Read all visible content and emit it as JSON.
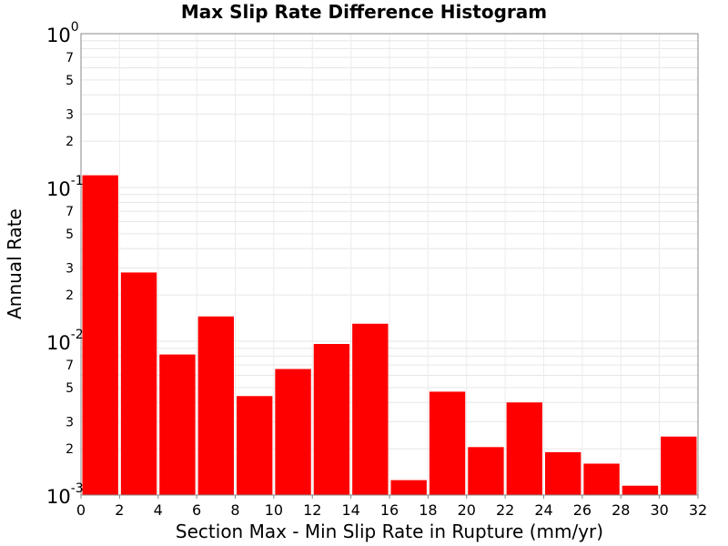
{
  "chart_data": {
    "type": "bar",
    "title": "Max Slip Rate Difference Histogram",
    "xlabel": "Section Max - Min Slip Rate in Rupture (mm/yr)",
    "ylabel": "Annual Rate",
    "xlim": [
      0,
      32
    ],
    "ylim": [
      0.001,
      1
    ],
    "yscale": "log",
    "grid": true,
    "bar_color": "#ff0000",
    "bin_width": 2,
    "bins": [
      {
        "x0": 0,
        "x1": 2,
        "value": 0.12
      },
      {
        "x0": 2,
        "x1": 4,
        "value": 0.028
      },
      {
        "x0": 4,
        "x1": 6,
        "value": 0.0082
      },
      {
        "x0": 6,
        "x1": 8,
        "value": 0.0145
      },
      {
        "x0": 8,
        "x1": 10,
        "value": 0.0044
      },
      {
        "x0": 10,
        "x1": 12,
        "value": 0.0066
      },
      {
        "x0": 12,
        "x1": 14,
        "value": 0.0096
      },
      {
        "x0": 14,
        "x1": 16,
        "value": 0.013
      },
      {
        "x0": 16,
        "x1": 18,
        "value": 0.00125
      },
      {
        "x0": 18,
        "x1": 20,
        "value": 0.0047
      },
      {
        "x0": 20,
        "x1": 22,
        "value": 0.00205
      },
      {
        "x0": 22,
        "x1": 24,
        "value": 0.004
      },
      {
        "x0": 24,
        "x1": 26,
        "value": 0.0019
      },
      {
        "x0": 26,
        "x1": 28,
        "value": 0.0016
      },
      {
        "x0": 28,
        "x1": 30,
        "value": 0.00115
      },
      {
        "x0": 30,
        "x1": 32,
        "value": 0.0024
      }
    ],
    "x_ticks": [
      "0",
      "2",
      "4",
      "6",
      "8",
      "10",
      "12",
      "14",
      "16",
      "18",
      "20",
      "22",
      "24",
      "26",
      "28",
      "30",
      "32"
    ],
    "y_decades": [
      {
        "base": "10",
        "exp": "0",
        "value": 1
      },
      {
        "base": "10",
        "exp": "-1",
        "value": 0.1
      },
      {
        "base": "10",
        "exp": "-2",
        "value": 0.01
      },
      {
        "base": "10",
        "exp": "-3",
        "value": 0.001
      }
    ],
    "y_minor_labels": [
      {
        "label": "7",
        "value": 0.7
      },
      {
        "label": "5",
        "value": 0.5
      },
      {
        "label": "3",
        "value": 0.3
      },
      {
        "label": "2",
        "value": 0.2
      },
      {
        "label": "7",
        "value": 0.07
      },
      {
        "label": "5",
        "value": 0.05
      },
      {
        "label": "3",
        "value": 0.03
      },
      {
        "label": "2",
        "value": 0.02
      },
      {
        "label": "7",
        "value": 0.007
      },
      {
        "label": "5",
        "value": 0.005
      },
      {
        "label": "3",
        "value": 0.003
      },
      {
        "label": "2",
        "value": 0.002
      }
    ]
  }
}
